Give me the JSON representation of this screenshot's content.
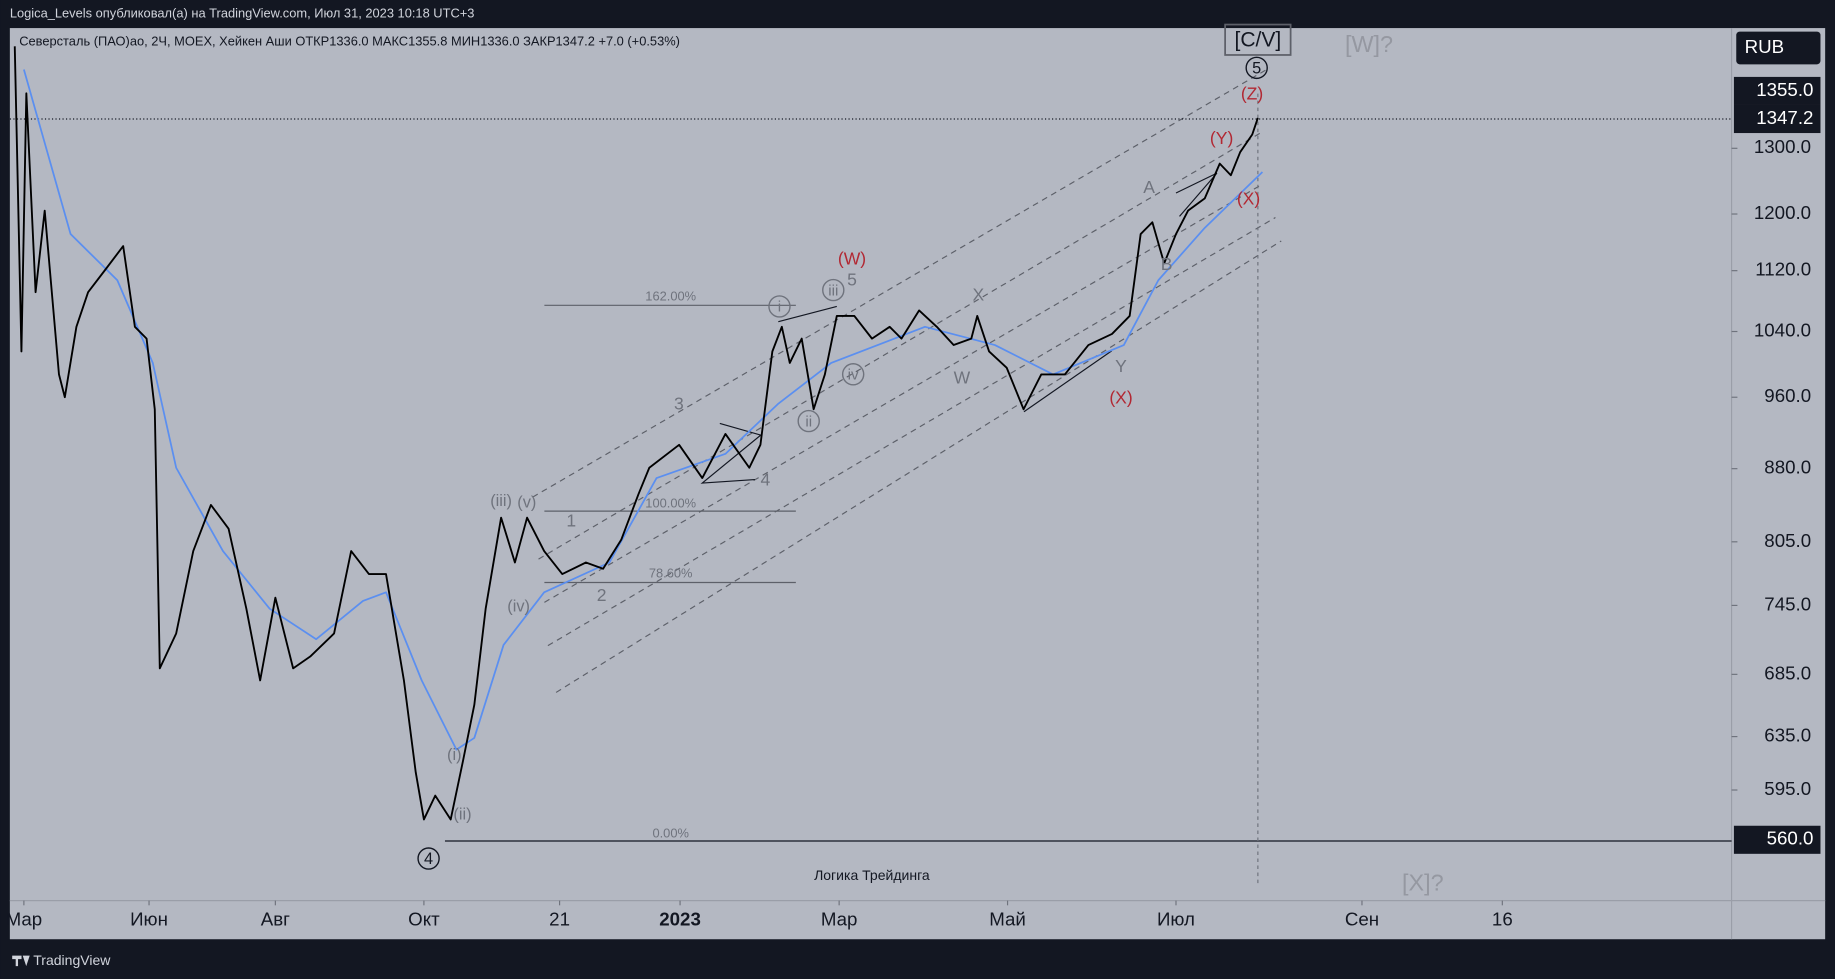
{
  "header": {
    "published": "Logica_Levels опубликовал(а) на TradingView.com, Июл 31, 2023 10:18 UTC+3",
    "brand": "TradingView"
  },
  "chart_data": {
    "type": "line",
    "title": "Северсталь (ПАО)ао, 2Ч, MOEX, Хейкен Аши  ОТКР1336.0  МАКС1355.8  МИН1336.0  ЗАКР1347.2  +7.0 (+0.53%)",
    "watermark": "Логика Трейдинга",
    "currency": "RUB",
    "log_scale": true,
    "ylim": [
      520,
      1505
    ],
    "yticks": [
      {
        "value": 1355,
        "label": "1355.0",
        "badge": true
      },
      {
        "value": 1300,
        "label": "1300.0"
      },
      {
        "value": 1200,
        "label": "1200.0"
      },
      {
        "value": 1120,
        "label": "1120.0"
      },
      {
        "value": 1040,
        "label": "1040.0"
      },
      {
        "value": 960,
        "label": "960.0"
      },
      {
        "value": 880,
        "label": "880.0"
      },
      {
        "value": 805,
        "label": "805.0"
      },
      {
        "value": 745,
        "label": "745.0"
      },
      {
        "value": 685,
        "label": "685.0"
      },
      {
        "value": 635,
        "label": "635.0"
      },
      {
        "value": 595,
        "label": "595.0"
      },
      {
        "value": 560,
        "label": "560.0",
        "badge": true
      }
    ],
    "current_price": {
      "value": 1347.2,
      "label": "1347.2"
    },
    "xticks": [
      {
        "value": 2,
        "label": "Мар"
      },
      {
        "value": 5,
        "label": "Июн"
      },
      {
        "value": 7,
        "label": "Авг"
      },
      {
        "value": 9,
        "label": "Окт"
      },
      {
        "value": 10.67,
        "label": "21"
      },
      {
        "value": 12,
        "label": "2023"
      },
      {
        "value": 14,
        "label": "Мар"
      },
      {
        "value": 16,
        "label": "Май"
      },
      {
        "value": 18,
        "label": "Июл"
      },
      {
        "value": 20,
        "label": "Сен"
      },
      {
        "value": 20.5,
        "label": "16"
      }
    ],
    "series": [
      {
        "color": "#000000",
        "x": [
          1.78,
          1.94,
          2.06,
          2.28,
          2.5,
          2.84,
          2.98,
          3.26,
          3.54,
          3.96,
          4.38,
          4.66,
          4.94,
          5.09,
          5.17,
          5.43,
          5.7,
          5.98,
          6.26,
          6.54,
          6.76,
          7,
          7.24,
          7.47,
          7.79,
          8.02,
          8.26,
          8.49,
          8.65,
          8.73,
          8.89,
          9,
          9.14,
          9.33,
          9.48,
          9.62,
          9.76,
          9.95,
          10.12,
          10.27,
          10.48,
          10.7,
          10.96,
          11.15,
          11.35,
          11.54,
          11.66,
          11.99,
          12.28,
          12.57,
          12.87,
          13.01,
          13.16,
          13.28,
          13.38,
          13.53,
          13.68,
          13.82,
          13.97,
          14.18,
          14.39,
          14.6,
          14.74,
          14.95,
          15.16,
          15.36,
          15.57,
          15.64,
          15.78,
          15.99,
          16.19,
          16.4,
          16.68,
          16.96,
          17.24,
          17.45,
          17.58,
          17.72,
          17.86,
          18,
          18.13,
          18.31,
          18.47,
          18.59,
          18.69,
          18.82,
          18.88
        ],
        "values": [
          1472,
          1015,
          1390,
          1091,
          1205,
          987,
          960,
          1046,
          1091,
          1122,
          1154,
          1046,
          1031,
          946,
          690,
          720,
          796,
          842,
          818,
          742,
          680,
          752,
          690,
          700,
          720,
          796,
          774,
          774,
          710,
          680,
          608,
          574,
          591,
          574,
          616,
          660,
          742,
          829,
          785,
          829,
          796,
          774,
          785,
          779,
          807,
          853,
          881,
          906,
          870,
          918,
          881,
          906,
          1015,
          1046,
          1001,
          1031,
          946,
          987,
          1060,
          1060,
          1031,
          1046,
          1031,
          1067,
          1046,
          1023,
          1031,
          1060,
          1015,
          995,
          946,
          987,
          987,
          1023,
          1037,
          1060,
          1171,
          1188,
          1130,
          1171,
          1205,
          1223,
          1276,
          1258,
          1294,
          1322,
          1349
        ]
      },
      {
        "color": "#5b8ff0",
        "x": [
          2,
          3.12,
          4.24,
          5.06,
          5.43,
          6.17,
          6.91,
          7.55,
          8.18,
          8.49,
          8.97,
          9.4,
          9.62,
          9.98,
          10.48,
          11.22,
          11.74,
          12.57,
          13.23,
          13.9,
          15.02,
          15.85,
          16.54,
          17.38,
          17.79,
          18.31,
          18.93
        ],
        "values": [
          1431,
          1171,
          1107,
          1001,
          881,
          796,
          742,
          715,
          749,
          757,
          680,
          625,
          634,
          710,
          757,
          785,
          870,
          896,
          952,
          1001,
          1046,
          1023,
          987,
          1023,
          1107,
          1180,
          1263
        ]
      }
    ],
    "annotations": [
      {
        "text": "[C/V]",
        "color": "#131722"
      },
      {
        "text": "5",
        "color": "#131722"
      },
      {
        "text": "(Z)",
        "color": "#b22833"
      },
      {
        "text": "(Y)",
        "color": "#b22833"
      },
      {
        "text": "(X)",
        "color": "#b22833"
      },
      {
        "text": "A",
        "color": "#6f737d"
      },
      {
        "text": "B",
        "color": "#6f737d"
      },
      {
        "text": "(W)",
        "color": "#b22833"
      },
      {
        "text": "5",
        "color": "#6f737d"
      },
      {
        "text": "iii",
        "color": "#6f737d"
      },
      {
        "text": "i",
        "color": "#6f737d"
      },
      {
        "text": "162.00%",
        "color": "#6f737d"
      },
      {
        "text": "X",
        "color": "#6f737d"
      },
      {
        "text": "W",
        "color": "#6f737d"
      },
      {
        "text": "Y",
        "color": "#6f737d"
      },
      {
        "text": "(X)",
        "color": "#b22833"
      },
      {
        "text": "3",
        "color": "#6f737d"
      },
      {
        "text": "4",
        "color": "#6f737d"
      },
      {
        "text": "ii",
        "color": "#6f737d"
      },
      {
        "text": "iv",
        "color": "#6f737d"
      },
      {
        "text": "(iii)",
        "color": "#6f737d"
      },
      {
        "text": "(v)",
        "color": "#6f737d"
      },
      {
        "text": "1",
        "color": "#6f737d"
      },
      {
        "text": "100.00%",
        "color": "#6f737d"
      },
      {
        "text": "2",
        "color": "#6f737d"
      },
      {
        "text": "78.60%",
        "color": "#6f737d"
      },
      {
        "text": "(iv)",
        "color": "#6f737d"
      },
      {
        "text": "(i)",
        "color": "#6f737d"
      },
      {
        "text": "(ii)",
        "color": "#6f737d"
      },
      {
        "text": "0.00%",
        "color": "#6f737d"
      },
      {
        "text": "4",
        "color": "#131722"
      },
      {
        "text": "[W]?",
        "color": "#9598a1"
      },
      {
        "text": "[X]?",
        "color": "#9598a1"
      }
    ]
  }
}
